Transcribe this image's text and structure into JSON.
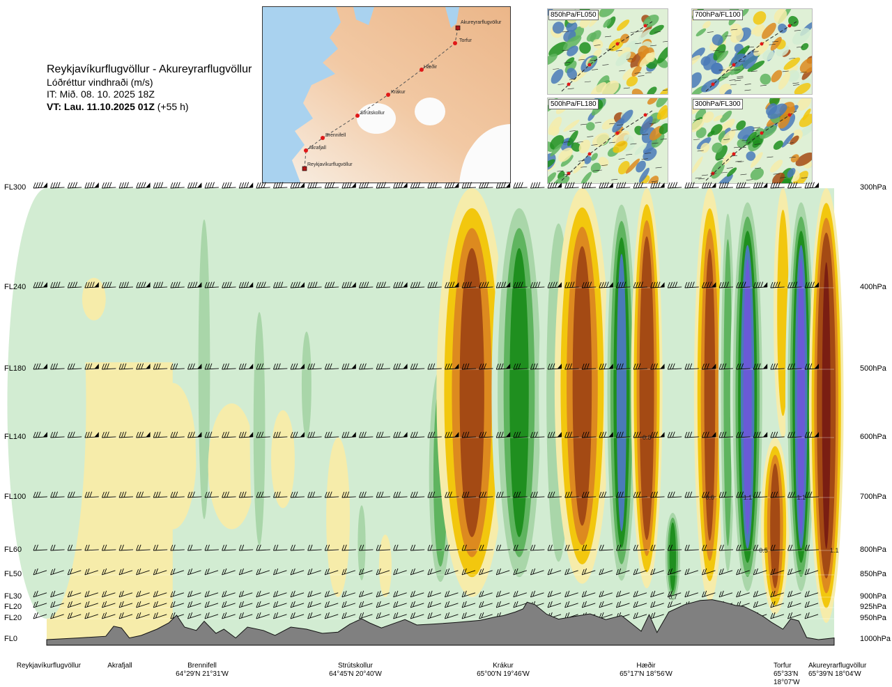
{
  "header": {
    "route": "Reykjavíkurflugvöllur - Akureyrarflugvöllur",
    "variable": "Lóðréttur vindhraði (m/s)",
    "issue_time": "IT: Mið. 08. 10. 2025 18Z",
    "valid_time_bold": "VT: Lau. 11.10.2025 01Z",
    "valid_time_offset": "(+55 h)"
  },
  "map": {
    "waypoints": [
      {
        "name": "Akureyrarflugvöllur"
      },
      {
        "name": "Torfur"
      },
      {
        "name": "Hæðir"
      },
      {
        "name": "Krákur"
      },
      {
        "name": "Strútskollur"
      },
      {
        "name": "Brennifell"
      },
      {
        "name": "Akrafjall"
      },
      {
        "name": "Reykjavíkurflugvöllur"
      }
    ]
  },
  "thumbnails": [
    {
      "label": "850hPa/FL050"
    },
    {
      "label": "700hPa/FL100"
    },
    {
      "label": "500hPa/FL180"
    },
    {
      "label": "300hPa/FL300"
    }
  ],
  "colors": {
    "strong_up_dark": "#7a1e12",
    "up_brown": "#a44a14",
    "up_orange": "#dd8a1f",
    "up_yellow": "#f2c70e",
    "up_light": "#f6ecaa",
    "neutral": "#fbf9e4",
    "down_light": "#d2ecd2",
    "down_mid": "#a9d6a9",
    "down_green": "#5fb45f",
    "down_dark": "#1f8f1f",
    "down_blue": "#4a7ab8",
    "down_violet": "#6a5ad6",
    "terrain": "#808080"
  },
  "chart_data": {
    "type": "heatmap",
    "title": "Reykjavíkurflugvöllur - Akureyrarflugvöllur",
    "variable": "Lóðréttur vindhraði (m/s)",
    "xlabel": "",
    "ylabel": "",
    "left_axis_labels": [
      "FL300",
      "FL240",
      "FL180",
      "FL140",
      "FL100",
      "FL60",
      "FL50",
      "FL30",
      "FL20",
      "FL20",
      "FL0"
    ],
    "right_axis_labels": [
      "300hPa",
      "400hPa",
      "500hPa",
      "600hPa",
      "700hPa",
      "800hPa",
      "850hPa",
      "900hPa",
      "925hPa",
      "950hPa",
      "1000hPa"
    ],
    "pressure_levels_hpa": [
      300,
      400,
      500,
      600,
      700,
      800,
      850,
      900,
      925,
      950,
      1000
    ],
    "barb_levels_hpa": [
      300,
      400,
      500,
      600,
      700,
      800,
      850,
      900,
      925,
      950
    ],
    "locations": [
      {
        "name": "Reykjavíkurflugvöllur",
        "coord": "",
        "dist": 0.0
      },
      {
        "name": "Akrafjall",
        "coord": "",
        "dist": 0.08
      },
      {
        "name": "Brennifell",
        "coord": "64°29'N 21°31'W",
        "dist": 0.16
      },
      {
        "name": "Strútskollur",
        "coord": "64°45'N 20°40'W",
        "dist": 0.37
      },
      {
        "name": "Krákur",
        "coord": "65°00'N 19°46'W",
        "dist": 0.57
      },
      {
        "name": "Hæðir",
        "coord": "65°17'N 18°56'W",
        "dist": 0.76
      },
      {
        "name": "Torfur",
        "coord": "65°33'N 18°07'W",
        "dist": 0.95
      },
      {
        "name": "Akureyrarflugvöllur",
        "coord": "65°39'N 18°04'W",
        "dist": 1.0
      }
    ],
    "value_labels": [
      {
        "text": "0.8",
        "dist": 0.762,
        "hpa": 600
      },
      {
        "text": "0.6",
        "dist": 0.842,
        "hpa": 700
      },
      {
        "text": "1.1",
        "dist": 0.89,
        "hpa": 700
      },
      {
        "text": "1.1",
        "dist": 0.958,
        "hpa": 700
      },
      {
        "text": "0.5",
        "dist": 0.91,
        "hpa": 800
      },
      {
        "text": "1.1",
        "dist": 1.0,
        "hpa": 800
      },
      {
        "text": "0.7",
        "dist": 0.795,
        "hpa": 900
      }
    ],
    "bands": [
      {
        "dist": 0.0,
        "hw": 0.05,
        "v": -0.2,
        "top": 300,
        "bot": 950
      },
      {
        "dist": 0.06,
        "hw": 0.015,
        "v": 0.25,
        "top": 390,
        "bot": 440
      },
      {
        "dist": 0.16,
        "hw": 0.03,
        "v": 0.25,
        "top": 520,
        "bot": 760
      },
      {
        "dist": 0.2,
        "hw": 0.012,
        "v": -0.3,
        "top": 300,
        "bot": 800
      },
      {
        "dist": 0.235,
        "hw": 0.03,
        "v": 0.25,
        "top": 550,
        "bot": 760
      },
      {
        "dist": 0.27,
        "hw": 0.012,
        "v": -0.3,
        "top": 400,
        "bot": 840
      },
      {
        "dist": 0.3,
        "hw": 0.015,
        "v": 0.2,
        "top": 560,
        "bot": 720
      },
      {
        "dist": 0.33,
        "hw": 0.01,
        "v": -0.3,
        "top": 440,
        "bot": 620
      },
      {
        "dist": 0.37,
        "hw": 0.015,
        "v": 0.2,
        "top": 600,
        "bot": 900
      },
      {
        "dist": 0.4,
        "hw": 0.008,
        "v": -0.3,
        "top": 700,
        "bot": 880
      },
      {
        "dist": 0.43,
        "hw": 0.008,
        "v": 0.25,
        "top": 770,
        "bot": 900
      },
      {
        "dist": 0.5,
        "hw": 0.02,
        "v": -0.55,
        "top": 480,
        "bot": 900
      },
      {
        "dist": 0.54,
        "hw": 0.045,
        "v": 0.75,
        "top": 300,
        "bot": 900
      },
      {
        "dist": 0.6,
        "hw": 0.035,
        "v": -0.8,
        "top": 300,
        "bot": 900
      },
      {
        "dist": 0.65,
        "hw": 0.025,
        "v": -0.3,
        "top": 300,
        "bot": 900
      },
      {
        "dist": 0.68,
        "hw": 0.035,
        "v": 0.75,
        "top": 300,
        "bot": 870
      },
      {
        "dist": 0.73,
        "hw": 0.022,
        "v": -1.0,
        "top": 300,
        "bot": 900
      },
      {
        "dist": 0.762,
        "hw": 0.02,
        "v": 1.0,
        "top": 300,
        "bot": 880
      },
      {
        "dist": 0.795,
        "hw": 0.012,
        "v": -0.85,
        "top": 720,
        "bot": 920
      },
      {
        "dist": 0.815,
        "hw": 0.015,
        "v": -0.25,
        "top": 300,
        "bot": 900
      },
      {
        "dist": 0.842,
        "hw": 0.02,
        "v": 0.8,
        "top": 300,
        "bot": 910
      },
      {
        "dist": 0.865,
        "hw": 0.012,
        "v": -0.6,
        "top": 300,
        "bot": 900
      },
      {
        "dist": 0.89,
        "hw": 0.022,
        "v": -1.2,
        "top": 300,
        "bot": 920
      },
      {
        "dist": 0.925,
        "hw": 0.018,
        "v": 0.9,
        "top": 600,
        "bot": 940
      },
      {
        "dist": 0.935,
        "hw": 0.012,
        "v": 0.3,
        "top": 300,
        "bot": 600
      },
      {
        "dist": 0.958,
        "hw": 0.02,
        "v": -1.2,
        "top": 300,
        "bot": 920
      },
      {
        "dist": 0.99,
        "hw": 0.022,
        "v": 1.3,
        "top": 300,
        "bot": 960
      }
    ],
    "terrain_hpa": [
      [
        0.0,
        1000
      ],
      [
        0.04,
        996
      ],
      [
        0.075,
        992
      ],
      [
        0.085,
        968
      ],
      [
        0.095,
        972
      ],
      [
        0.105,
        996
      ],
      [
        0.12,
        990
      ],
      [
        0.14,
        975
      ],
      [
        0.155,
        960
      ],
      [
        0.165,
        942
      ],
      [
        0.175,
        970
      ],
      [
        0.19,
        978
      ],
      [
        0.2,
        956
      ],
      [
        0.215,
        985
      ],
      [
        0.225,
        975
      ],
      [
        0.24,
        996
      ],
      [
        0.255,
        970
      ],
      [
        0.275,
        978
      ],
      [
        0.29,
        990
      ],
      [
        0.31,
        970
      ],
      [
        0.33,
        975
      ],
      [
        0.35,
        985
      ],
      [
        0.37,
        982
      ],
      [
        0.385,
        963
      ],
      [
        0.4,
        950
      ],
      [
        0.41,
        960
      ],
      [
        0.425,
        972
      ],
      [
        0.44,
        962
      ],
      [
        0.455,
        952
      ],
      [
        0.47,
        965
      ],
      [
        0.49,
        963
      ],
      [
        0.52,
        959
      ],
      [
        0.55,
        954
      ],
      [
        0.57,
        946
      ],
      [
        0.58,
        943
      ],
      [
        0.595,
        935
      ],
      [
        0.605,
        928
      ],
      [
        0.61,
        912
      ],
      [
        0.62,
        918
      ],
      [
        0.635,
        940
      ],
      [
        0.65,
        951
      ],
      [
        0.67,
        945
      ],
      [
        0.69,
        939
      ],
      [
        0.71,
        952
      ],
      [
        0.73,
        943
      ],
      [
        0.745,
        965
      ],
      [
        0.755,
        980
      ],
      [
        0.765,
        941
      ],
      [
        0.775,
        983
      ],
      [
        0.79,
        935
      ],
      [
        0.81,
        918
      ],
      [
        0.83,
        908
      ],
      [
        0.845,
        906
      ],
      [
        0.86,
        912
      ],
      [
        0.875,
        920
      ],
      [
        0.885,
        922
      ],
      [
        0.9,
        935
      ],
      [
        0.91,
        945
      ],
      [
        0.92,
        958
      ],
      [
        0.935,
        975
      ],
      [
        0.945,
        950
      ],
      [
        0.955,
        955
      ],
      [
        0.965,
        995
      ],
      [
        0.98,
        1000
      ],
      [
        1.0,
        996
      ]
    ]
  }
}
